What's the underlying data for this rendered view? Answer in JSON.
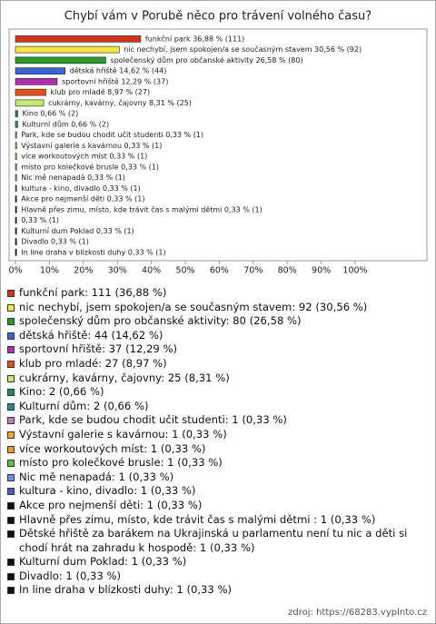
{
  "chart_data": {
    "type": "bar",
    "orientation": "horizontal",
    "title": "Chybí vám v Porubě něco pro trávení volného času?",
    "source": "zdroj: https://68283.vyplnto.cz",
    "categories": [
      "funkční park",
      "nic nechybí, jsem spokojen/a se současným stavem",
      "společenský dům pro občanské aktivity",
      "dětská hřiště",
      "sportovní hřiště",
      "klub pro mladé",
      "cukrárny, kavárny, čajovny",
      "Kino",
      "Kulturní dům",
      "Park, kde se budou chodit učit studenti",
      "Výstavní galerie s kavárnou",
      "více workoutových míst",
      "místo pro kolečkové brusle",
      "Nic mě nenapadá",
      "kultura - kino, divadlo",
      "Akce pro nejmenší děti",
      "Hlavně přes zimu, místo, kde trávit čas s malými dětmi ",
      "Dětské hřiště za barákem na Ukrajinská u parlamentu není tu nic a děti si chodí hrát na zahradu k hospodě",
      "Kulturní dum Poklad",
      "Divadlo",
      "In line draha v blízkosti duhy"
    ],
    "values": [
      36.88,
      30.56,
      26.58,
      14.62,
      12.29,
      8.97,
      8.31,
      0.66,
      0.66,
      0.33,
      0.33,
      0.33,
      0.33,
      0.33,
      0.33,
      0.33,
      0.33,
      0.33,
      0.33,
      0.33,
      0.33
    ],
    "value_labels": [
      "funkční park 36,88 % (111)",
      "nic nechybí, jsem spokojen/a se současným stavem 30,56 % (92)",
      "společenský dům pro občanské aktivity 26,58 % (80)",
      "dětská hřiště 14,62 % (44)",
      "sportovní hřiště 12,29 % (37)",
      "klub pro mladé 8,97 % (27)",
      "cukrárny, kavárny, čajovny 8,31 % (25)",
      "Kino 0,66 % (2)",
      "Kulturní dům 0,66 % (2)",
      "Park, kde se budou chodit učit studenti 0,33 % (1)",
      "Výstavní galerie s kavárnou 0,33 % (1)",
      "více workoutových míst 0,33 % (1)",
      "místo pro kolečkové brusle 0,33 % (1)",
      "Nic mě nenapadá 0,33 % (1)",
      "kultura - kino, divadlo 0,33 % (1)",
      "Akce pro nejmenší děti 0,33 % (1)",
      "Hlavně přes zimu, místo, kde trávit čas s malými dětmi  0,33 % (1)",
      "0,33 % (1)",
      "Kulturní dum Poklad 0,33 % (1)",
      "Divadlo 0,33 % (1)",
      "In line draha v blízkosti duhy 0,33 % (1)"
    ],
    "legend_labels": [
      "funkční park: 111 (36,88 %)",
      "nic nechybí, jsem spokojen/a se současným stavem: 92 (30,56 %)",
      "společenský dům pro občanské aktivity: 80 (26,58 %)",
      "dětská hřiště: 44 (14,62 %)",
      "sportovní hřiště: 37 (12,29 %)",
      "klub pro mladé: 27 (8,97 %)",
      "cukrárny, kavárny, čajovny: 25 (8,31 %)",
      "Kino: 2 (0,66 %)",
      "Kulturní dům: 2 (0,66 %)",
      "Park, kde se budou chodit učit studenti: 1 (0,33 %)",
      "Výstavní galerie s kavárnou: 1 (0,33 %)",
      "více workoutových míst: 1 (0,33 %)",
      "místo pro kolečkové brusle: 1 (0,33 %)",
      "Nic mě nenapadá: 1 (0,33 %)",
      "kultura - kino, divadlo: 1 (0,33 %)",
      "Akce pro nejmenší děti: 1 (0,33 %)",
      "Hlavně přes zimu, místo, kde trávit čas s malými dětmi : 1 (0,33 %)",
      "Dětské hřiště za barákem na Ukrajinská u parlamentu není tu nic a děti si chodí hrát na zahradu k hospodě: 1 (0,33 %)",
      "Kulturní dum Poklad: 1 (0,33 %)",
      "Divadlo: 1 (0,33 %)",
      "In line draha v blízkosti duhy: 1 (0,33 %)"
    ],
    "colors": [
      "#d0351c",
      "#f4e640",
      "#2a9a2a",
      "#3d62d4",
      "#b22cb2",
      "#e2501c",
      "#c6e870",
      "#1f8a6a",
      "#2a8a8c",
      "#c478c4",
      "#f0a838",
      "#e8a020",
      "#5cc040",
      "#7090e0",
      "#4a5cc0",
      "#111111",
      "#111111",
      "#111111",
      "#111111",
      "#111111",
      "#111111"
    ],
    "xlim": [
      0,
      100
    ],
    "xticks": [
      {
        "value": 0,
        "label": "0%"
      },
      {
        "value": 10,
        "label": "10%"
      },
      {
        "value": 20,
        "label": "20%"
      },
      {
        "value": 30,
        "label": "30%"
      },
      {
        "value": 40,
        "label": "40%"
      },
      {
        "value": 50,
        "label": "50%"
      },
      {
        "value": 60,
        "label": "60%"
      },
      {
        "value": 70,
        "label": "70%"
      },
      {
        "value": 80,
        "label": "80%"
      },
      {
        "value": 90,
        "label": "90%"
      },
      {
        "value": 100,
        "label": "100%"
      }
    ]
  }
}
